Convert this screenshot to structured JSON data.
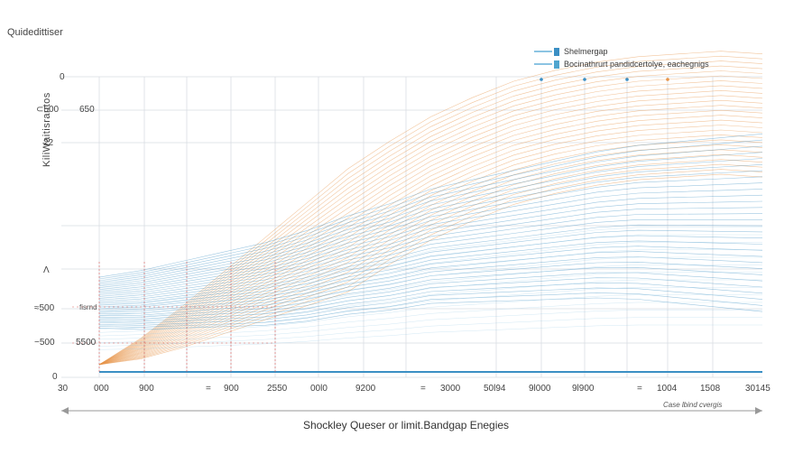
{
  "chart_data": {
    "type": "line",
    "title": "Quidedittiser",
    "bottom_title": "Shockley Queser or limit.Bandgap Enegies",
    "right_note": "Case lbind cvergis",
    "y_rotated_label": "KiliWaitisrantos",
    "y_left_labels": [
      "0",
      "⊂500",
      "22",
      "Λ",
      "≈500",
      "−500",
      "0"
    ],
    "y_inner_labels": [
      "650",
      "5500"
    ],
    "x_tick_labels": [
      "30",
      "000",
      "900",
      "=",
      "900",
      "2550",
      "00l0",
      "9200",
      "=",
      "3000",
      "50l94",
      "9l000",
      "9l900",
      "=",
      "1004",
      "1508",
      "30145"
    ],
    "annotation": "fisrnd",
    "legend": [
      {
        "name": "Shelmergap",
        "color": "#3b8fc4"
      },
      {
        "name": "Bocinathrurt pandidcertolye, eachegnigs",
        "color": "#4fa5cf"
      }
    ],
    "colors": {
      "orange": "#e8954a",
      "blue": "#3b8fc4",
      "red": "#d9534f",
      "grid": "#d9dde3"
    },
    "x": [
      0,
      1,
      2,
      3,
      4,
      5,
      6,
      7,
      8,
      9,
      10,
      11,
      12,
      13,
      14,
      15,
      16
    ],
    "series": [
      {
        "values": [
          0.02,
          0.08,
          0.16,
          0.25,
          0.34,
          0.43,
          0.52,
          0.62,
          0.71,
          0.78,
          0.84,
          0.88,
          0.91,
          0.93,
          0.94,
          0.95,
          0.94
        ]
      },
      {
        "values": [
          0.25,
          0.26,
          0.28,
          0.3,
          0.32,
          0.35,
          0.39,
          0.42,
          0.46,
          0.48,
          0.5,
          0.52,
          0.54,
          0.55,
          0.55,
          0.55,
          0.55
        ]
      }
    ],
    "grid": true
  }
}
